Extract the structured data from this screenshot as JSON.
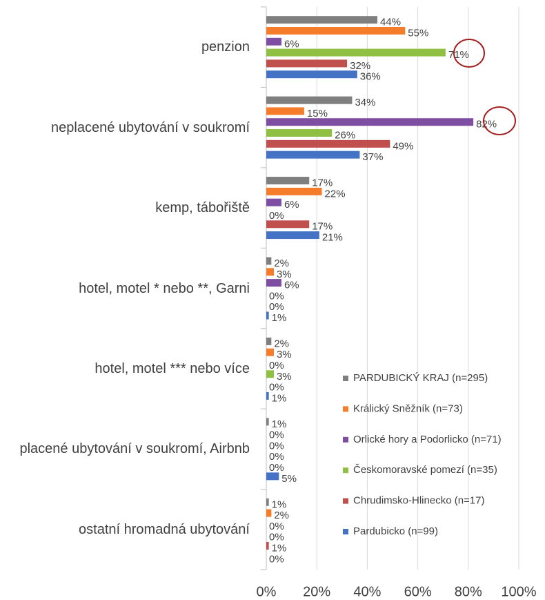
{
  "chart_data": {
    "type": "bar",
    "orientation": "horizontal",
    "categories": [
      "penzion",
      "neplacené ubytování v soukromí",
      "kemp, tábořiště",
      "hotel, motel * nebo **, Garni",
      "hotel, motel *** nebo více",
      "placené ubytování v soukromí, Airbnb",
      "ostatní hromadná ubytování"
    ],
    "series": [
      {
        "name": "PARDUBICKÝ KRAJ (n=295)",
        "color": "#7f7f7f",
        "values": [
          44,
          34,
          17,
          2,
          2,
          1,
          1
        ],
        "value_labels": [
          "44%",
          "34%",
          "17%",
          "2%",
          "2%",
          "1%",
          "1%"
        ]
      },
      {
        "name": "Králický Sněžník (n=73)",
        "color": "#f47c2a",
        "values": [
          55,
          15,
          22,
          3,
          3,
          0,
          2
        ],
        "value_labels": [
          "55%",
          "15%",
          "22%",
          "3%",
          "3%",
          "0%",
          "2%"
        ]
      },
      {
        "name": "Orlické hory a Podorlicko (n=71)",
        "color": "#7e4ea3",
        "values": [
          6,
          82,
          6,
          6,
          0,
          0,
          0
        ],
        "value_labels": [
          "6%",
          "82%",
          "6%",
          "6%",
          "0%",
          "0%",
          "0%"
        ]
      },
      {
        "name": "Českomoravské pomezí (n=35)",
        "color": "#8fc043",
        "values": [
          71,
          26,
          0,
          0,
          3,
          0,
          0
        ],
        "value_labels": [
          "71%",
          "26%",
          "0%",
          "0%",
          "3%",
          "0%",
          "0%"
        ]
      },
      {
        "name": "Chrudimsko-Hlinecko (n=17)",
        "color": "#c0504d",
        "values": [
          32,
          49,
          17,
          0,
          0,
          0,
          1
        ],
        "value_labels": [
          "32%",
          "49%",
          "17%",
          "0%",
          "0%",
          "0%",
          "1%"
        ]
      },
      {
        "name": "Pardubicko (n=99)",
        "color": "#4472c4",
        "values": [
          36,
          37,
          21,
          1,
          1,
          5,
          0
        ],
        "value_labels": [
          "36%",
          "37%",
          "21%",
          "1%",
          "1%",
          "5%",
          "0%"
        ]
      }
    ],
    "xlim": [
      0,
      100
    ],
    "xticks": [
      {
        "value": 0,
        "label": "0%"
      },
      {
        "value": 20,
        "label": "20%"
      },
      {
        "value": 40,
        "label": "40%"
      },
      {
        "value": 60,
        "label": "60%"
      },
      {
        "value": 80,
        "label": "80%"
      },
      {
        "value": 100,
        "label": "100%"
      }
    ],
    "grid": true,
    "legend": "bottom-right"
  }
}
